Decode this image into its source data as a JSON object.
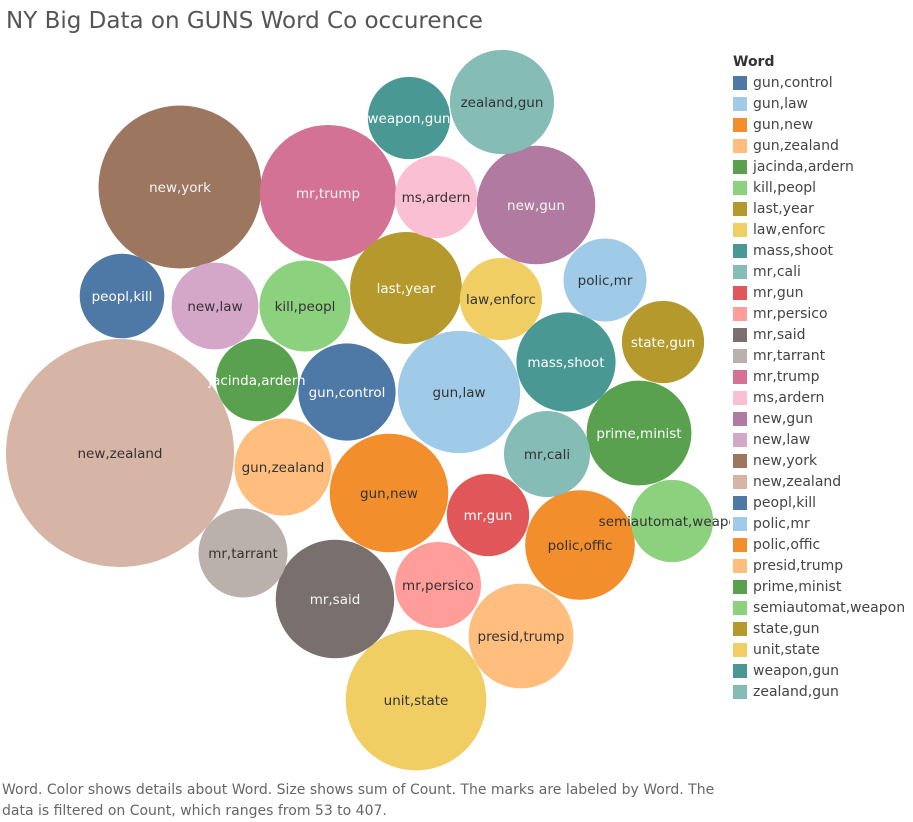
{
  "title": "NY Big Data on GUNS Word Co occurence",
  "caption": "Word.  Color shows details about Word.  Size shows sum of Count.  The marks are labeled by Word. The data is filtered on Count, which ranges from 53 to 407.",
  "legend": {
    "title": "Word",
    "items": [
      {
        "label": "gun,control",
        "color": "#4e79a7"
      },
      {
        "label": "gun,law",
        "color": "#a0cbe8"
      },
      {
        "label": "gun,new",
        "color": "#f28e2b"
      },
      {
        "label": "gun,zealand",
        "color": "#ffbe7d"
      },
      {
        "label": "jacinda,ardern",
        "color": "#59a14f"
      },
      {
        "label": "kill,peopl",
        "color": "#8cd17d"
      },
      {
        "label": "last,year",
        "color": "#b6992d"
      },
      {
        "label": "law,enforc",
        "color": "#f1ce63"
      },
      {
        "label": "mass,shoot",
        "color": "#499894"
      },
      {
        "label": "mr,cali",
        "color": "#86bcb6"
      },
      {
        "label": "mr,gun",
        "color": "#e15759"
      },
      {
        "label": "mr,persico",
        "color": "#ff9d9a"
      },
      {
        "label": "mr,said",
        "color": "#79706e"
      },
      {
        "label": "mr,tarrant",
        "color": "#bab0ac"
      },
      {
        "label": "mr,trump",
        "color": "#d37295"
      },
      {
        "label": "ms,ardern",
        "color": "#fabfd2"
      },
      {
        "label": "new,gun",
        "color": "#b07aa1"
      },
      {
        "label": "new,law",
        "color": "#d4a6c8"
      },
      {
        "label": "new,york",
        "color": "#9d7660"
      },
      {
        "label": "new,zealand",
        "color": "#d7b5a6"
      },
      {
        "label": "peopl,kill",
        "color": "#4e79a7"
      },
      {
        "label": "polic,mr",
        "color": "#a0cbe8"
      },
      {
        "label": "polic,offic",
        "color": "#f28e2b"
      },
      {
        "label": "presid,trump",
        "color": "#ffbe7d"
      },
      {
        "label": "prime,minist",
        "color": "#59a14f"
      },
      {
        "label": "semiautomat,weapon",
        "color": "#8cd17d"
      },
      {
        "label": "state,gun",
        "color": "#b6992d"
      },
      {
        "label": "unit,state",
        "color": "#f1ce63"
      },
      {
        "label": "weapon,gun",
        "color": "#499894"
      },
      {
        "label": "zealand,gun",
        "color": "#86bcb6"
      }
    ]
  },
  "chart_data": {
    "type": "packed-bubble",
    "title": "NY Big Data on GUNS Word Co occurence",
    "size_measure": "sum of Count",
    "count_range": [
      53,
      407
    ],
    "bubbles": [
      {
        "label": "new,zealand",
        "value": 407,
        "color": "#d7b5a6"
      },
      {
        "label": "new,york",
        "value": 208,
        "color": "#9d7660"
      },
      {
        "label": "mr,trump",
        "value": 145,
        "color": "#d37295"
      },
      {
        "label": "gun,law",
        "value": 117,
        "color": "#a0cbe8"
      },
      {
        "label": "new,gun",
        "value": 110,
        "color": "#b07aa1"
      },
      {
        "label": "last,year",
        "value": 98,
        "color": "#b6992d"
      },
      {
        "label": "unit,state",
        "value": 155,
        "color": "#f1ce63"
      },
      {
        "label": "gun,new",
        "value": 110,
        "color": "#f28e2b"
      },
      {
        "label": "zealand,gun",
        "value": 85,
        "color": "#86bcb6"
      },
      {
        "label": "polic,offic",
        "value": 94,
        "color": "#f28e2b"
      },
      {
        "label": "mr,said",
        "value": 110,
        "color": "#79706e"
      },
      {
        "label": "prime,minist",
        "value": 86,
        "color": "#59a14f"
      },
      {
        "label": "mass,shoot",
        "value": 77,
        "color": "#499894"
      },
      {
        "label": "presid,trump",
        "value": 86,
        "color": "#ffbe7d"
      },
      {
        "label": "gun,control",
        "value": 74,
        "color": "#4e79a7"
      },
      {
        "label": "kill,peopl",
        "value": 65,
        "color": "#8cd17d"
      },
      {
        "label": "peopl,kill",
        "value": 56,
        "color": "#4e79a7"
      },
      {
        "label": "new,law",
        "value": 59,
        "color": "#d4a6c8"
      },
      {
        "label": "gun,zealand",
        "value": 74,
        "color": "#ffbe7d"
      },
      {
        "label": "mr,tarrant",
        "value": 62,
        "color": "#bab0ac"
      },
      {
        "label": "mr,cali",
        "value": 58,
        "color": "#86bcb6"
      },
      {
        "label": "polic,mr",
        "value": 54,
        "color": "#a0cbe8"
      },
      {
        "label": "law,enforc",
        "value": 53,
        "color": "#f1ce63"
      },
      {
        "label": "mr,persico",
        "value": 58,
        "color": "#ff9d9a"
      },
      {
        "label": "ms,ardern",
        "value": 53,
        "color": "#fabfd2"
      },
      {
        "label": "weapon,gun",
        "value": 53,
        "color": "#499894"
      },
      {
        "label": "state,gun",
        "value": 53,
        "color": "#b6992d"
      },
      {
        "label": "jacinda,ardern",
        "value": 53,
        "color": "#59a14f"
      },
      {
        "label": "mr,gun",
        "value": 53,
        "color": "#e15759"
      },
      {
        "label": "semiautomat,weapon",
        "value": 53,
        "color": "#8cd17d"
      }
    ]
  }
}
